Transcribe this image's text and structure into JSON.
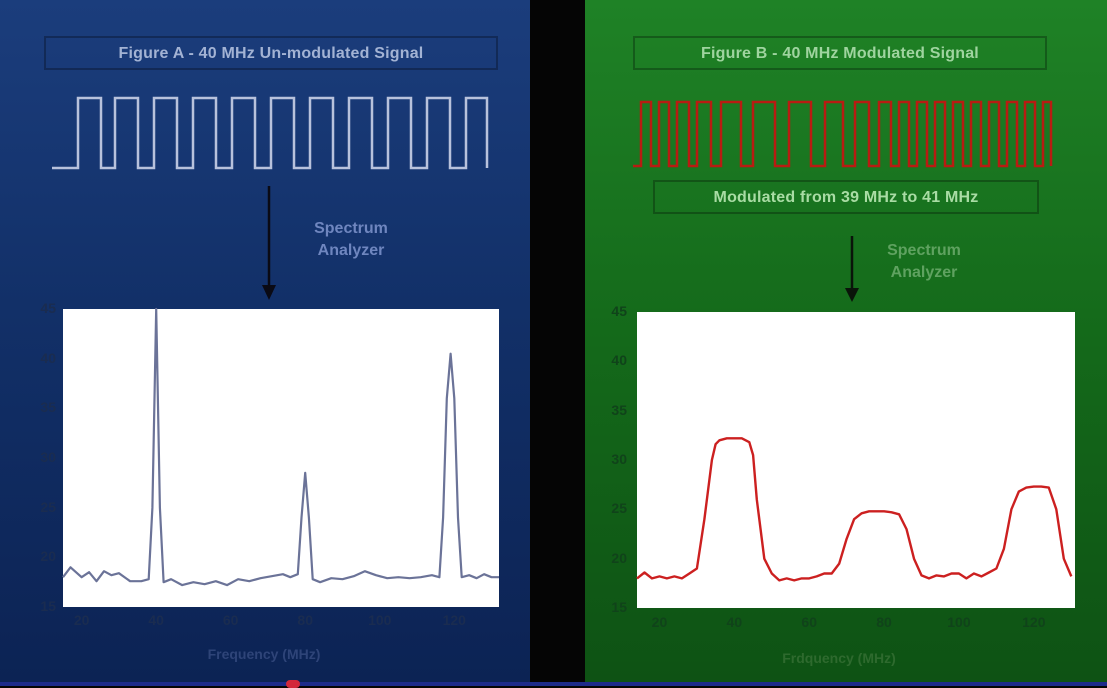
{
  "figure_a": {
    "title": "Figure A - 40 MHz Un-modulated Signal",
    "analyzer_label": [
      "Spectrum",
      "Analyzer"
    ],
    "signal_color": "#b8c2dc",
    "line_color": "#6b7398"
  },
  "figure_b": {
    "title": "Figure B - 40 MHz Modulated Signal",
    "modulation_note": "Modulated from 39 MHz to 41 MHz",
    "analyzer_label": [
      "Spectrum",
      "Analyzer"
    ],
    "signal_color": "#b81c12",
    "line_color": "#cc2020"
  },
  "chart_data": [
    {
      "type": "line",
      "xlabel": "Frequency (MHz)",
      "ylabel": "",
      "xlim": [
        15,
        132
      ],
      "ylim": [
        15,
        45
      ],
      "x_ticks": [
        20,
        40,
        60,
        80,
        100,
        120
      ],
      "y_ticks": [
        15,
        20,
        25,
        30,
        35,
        40,
        45
      ],
      "grid": false,
      "series": [
        {
          "x": [
            15,
            17,
            20,
            22,
            24,
            26,
            28,
            30,
            33,
            36,
            38,
            39,
            40,
            41,
            42,
            44,
            47,
            50,
            53,
            56,
            59,
            62,
            65,
            68,
            71,
            74,
            76,
            78,
            79,
            80,
            81,
            82,
            84,
            87,
            90,
            93,
            96,
            99,
            102,
            105,
            108,
            111,
            114,
            116,
            117,
            118,
            119,
            120,
            121,
            122,
            124,
            126,
            128,
            130,
            132
          ],
          "y": [
            18.0,
            19.0,
            18.0,
            18.5,
            17.6,
            18.6,
            18.2,
            18.4,
            17.6,
            17.6,
            17.8,
            25.0,
            45.0,
            25.0,
            17.5,
            17.8,
            17.2,
            17.5,
            17.3,
            17.6,
            17.2,
            17.8,
            17.6,
            17.9,
            18.1,
            18.3,
            18.0,
            18.3,
            24.0,
            28.5,
            24.0,
            17.8,
            17.5,
            17.9,
            17.8,
            18.1,
            18.6,
            18.2,
            17.9,
            18.0,
            17.9,
            18.0,
            18.2,
            18.0,
            24.0,
            36.0,
            40.5,
            36.0,
            24.0,
            18.0,
            18.2,
            17.9,
            18.3,
            18.0,
            18.0
          ]
        }
      ]
    },
    {
      "type": "line",
      "xlabel": "Frdquency (MHz)",
      "ylabel": "",
      "xlim": [
        14,
        131
      ],
      "ylim": [
        15,
        45
      ],
      "x_ticks": [
        20,
        40,
        60,
        80,
        100,
        120
      ],
      "y_ticks": [
        15,
        20,
        25,
        30,
        35,
        40,
        45
      ],
      "grid": false,
      "series": [
        {
          "x": [
            14,
            16,
            18,
            20,
            22,
            24,
            26,
            28,
            30,
            32,
            34,
            35,
            36,
            38,
            40,
            42,
            44,
            45,
            46,
            48,
            50,
            52,
            54,
            56,
            58,
            60,
            62,
            64,
            66,
            68,
            70,
            72,
            74,
            76,
            78,
            80,
            82,
            84,
            86,
            88,
            90,
            92,
            94,
            96,
            98,
            100,
            102,
            104,
            106,
            108,
            110,
            112,
            114,
            116,
            118,
            120,
            122,
            124,
            126,
            128,
            130
          ],
          "y": [
            18.0,
            18.6,
            18.0,
            18.2,
            18.0,
            18.2,
            18.0,
            18.5,
            19.0,
            24.0,
            30.0,
            31.6,
            32.0,
            32.2,
            32.2,
            32.2,
            31.8,
            30.5,
            26.0,
            20.0,
            18.5,
            17.8,
            18.0,
            17.8,
            18.0,
            18.0,
            18.2,
            18.5,
            18.5,
            19.5,
            22.0,
            24.0,
            24.6,
            24.8,
            24.8,
            24.8,
            24.7,
            24.5,
            23.0,
            20.0,
            18.3,
            18.0,
            18.3,
            18.2,
            18.5,
            18.5,
            18.0,
            18.5,
            18.2,
            18.6,
            19.0,
            21.0,
            25.0,
            26.8,
            27.2,
            27.3,
            27.3,
            27.2,
            25.0,
            20.0,
            18.2
          ]
        }
      ]
    }
  ]
}
